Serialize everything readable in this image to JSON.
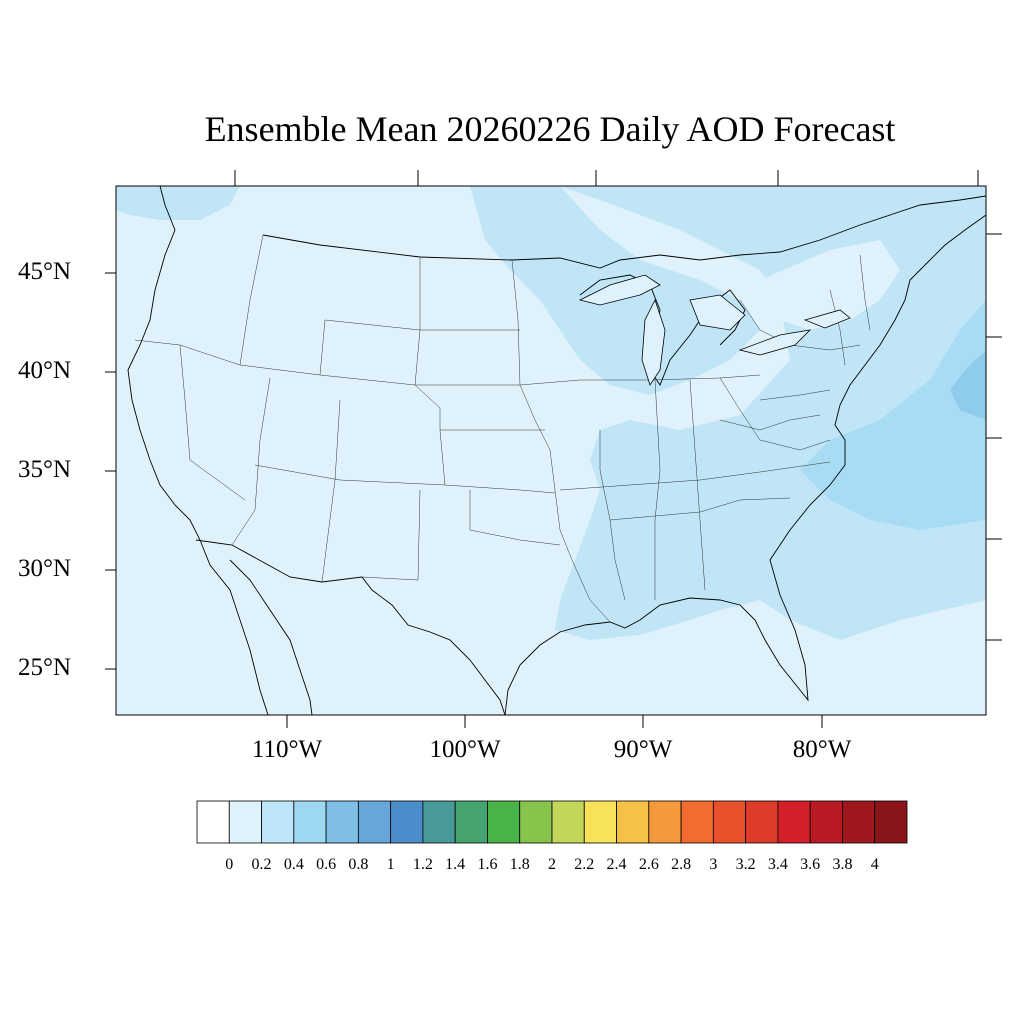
{
  "title": "Ensemble Mean 20260226 Daily AOD Forecast",
  "map": {
    "region": "Contiguous United States",
    "projection": "Lambert Conformal",
    "variable": "AOD",
    "lat_labels": [
      "45°N",
      "40°N",
      "35°N",
      "30°N",
      "25°N"
    ],
    "lon_labels": [
      "110°W",
      "100°W",
      "90°W",
      "80°W"
    ],
    "ocean_fill": "#dff2fb",
    "plume_fill": "#bfe5f7",
    "peak_fill": "#8fcbea",
    "boundary_color": "#000000"
  },
  "colorbar": {
    "labels": [
      "0",
      "0.2",
      "0.4",
      "0.6",
      "0.8",
      "1",
      "1.2",
      "1.4",
      "1.6",
      "1.8",
      "2",
      "2.2",
      "2.4",
      "2.6",
      "2.8",
      "3",
      "3.2",
      "3.4",
      "3.6",
      "3.8",
      "4"
    ],
    "colors": [
      "#ffffff",
      "#dff2fb",
      "#bde5f8",
      "#9dd8f3",
      "#7fbfe6",
      "#66a6db",
      "#4b8cca",
      "#4a9a9a",
      "#45a370",
      "#49b347",
      "#86c44c",
      "#c4d65a",
      "#f7e25a",
      "#f7c046",
      "#f59a3c",
      "#f26b2f",
      "#e8522a",
      "#de3b28",
      "#d42029",
      "#b81b24",
      "#a0181e",
      "#8a1519"
    ]
  }
}
